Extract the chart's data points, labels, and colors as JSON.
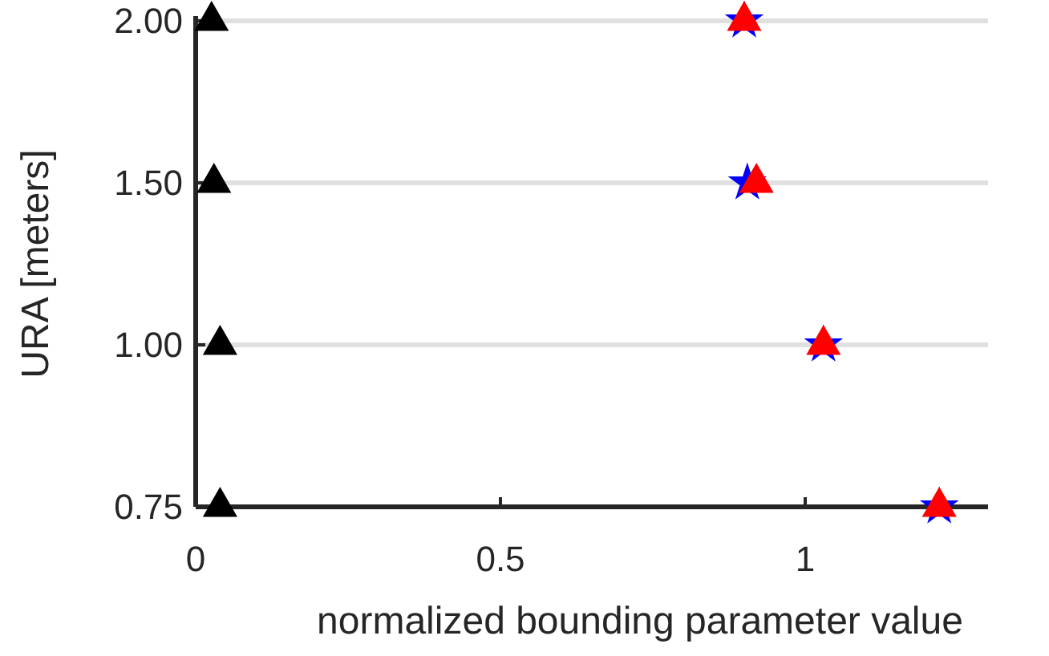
{
  "chart_data": {
    "type": "scatter",
    "orientation": "horizontal",
    "xlabel": "normalized bounding parameter value",
    "ylabel": "URA [meters]",
    "categories": [
      "2.00",
      "1.50",
      "1.00",
      "0.75"
    ],
    "xlim": [
      0,
      1.3
    ],
    "xticks": [
      0,
      0.5,
      1
    ],
    "grid": "y",
    "series": [
      {
        "color": "#000000",
        "marker": "triangle",
        "values": [
          0.026,
          0.03,
          0.04,
          0.04
        ]
      },
      {
        "color": "#0000ff",
        "marker": "star",
        "values": [
          0.9,
          0.905,
          1.03,
          1.22
        ]
      },
      {
        "color": "#ff0000",
        "marker": "triangle",
        "values": [
          0.9,
          0.92,
          1.03,
          1.22
        ]
      }
    ]
  }
}
